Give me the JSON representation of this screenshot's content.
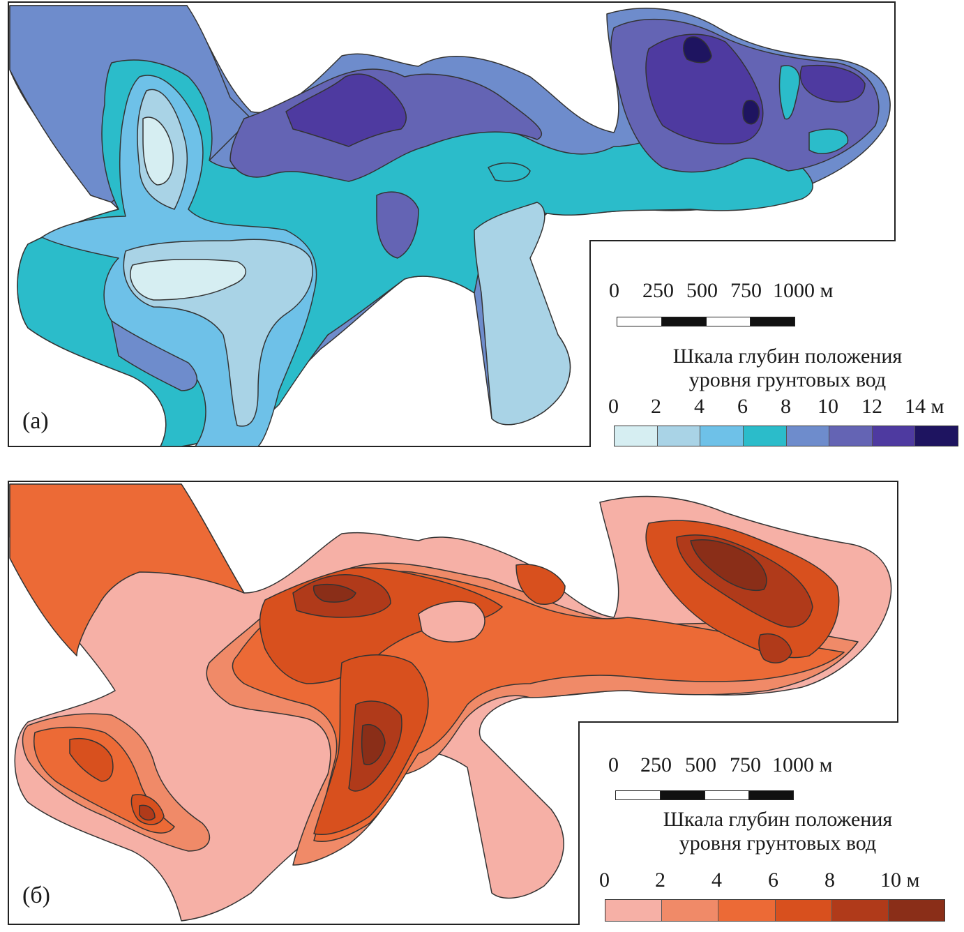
{
  "panels": [
    {
      "label": "(а)",
      "scale_bar": {
        "ticks": [
          "0",
          "250",
          "500",
          "750",
          "1000 м"
        ]
      },
      "legend": {
        "title_line1": "Шкала глубин положения",
        "title_line2": "уровня грунтовых вод",
        "ticks": [
          "0",
          "2",
          "4",
          "6",
          "8",
          "10",
          "12",
          "14 м"
        ],
        "colors": [
          "#d6eef2",
          "#a9d3e6",
          "#6ec1e8",
          "#2bbcca",
          "#6e8ccc",
          "#6464b4",
          "#4e3aa0",
          "#1e1460"
        ]
      }
    },
    {
      "label": "(б)",
      "scale_bar": {
        "ticks": [
          "0",
          "250",
          "500",
          "750",
          "1000 м"
        ]
      },
      "legend": {
        "title_line1": "Шкала глубин положения",
        "title_line2": "уровня грунтовых вод",
        "ticks": [
          "0",
          "2",
          "4",
          "6",
          "8",
          "10 м"
        ],
        "colors": [
          "#f6b0a6",
          "#f08a68",
          "#ec6a36",
          "#d8501e",
          "#b03a1a",
          "#8a2e18"
        ]
      }
    }
  ]
}
